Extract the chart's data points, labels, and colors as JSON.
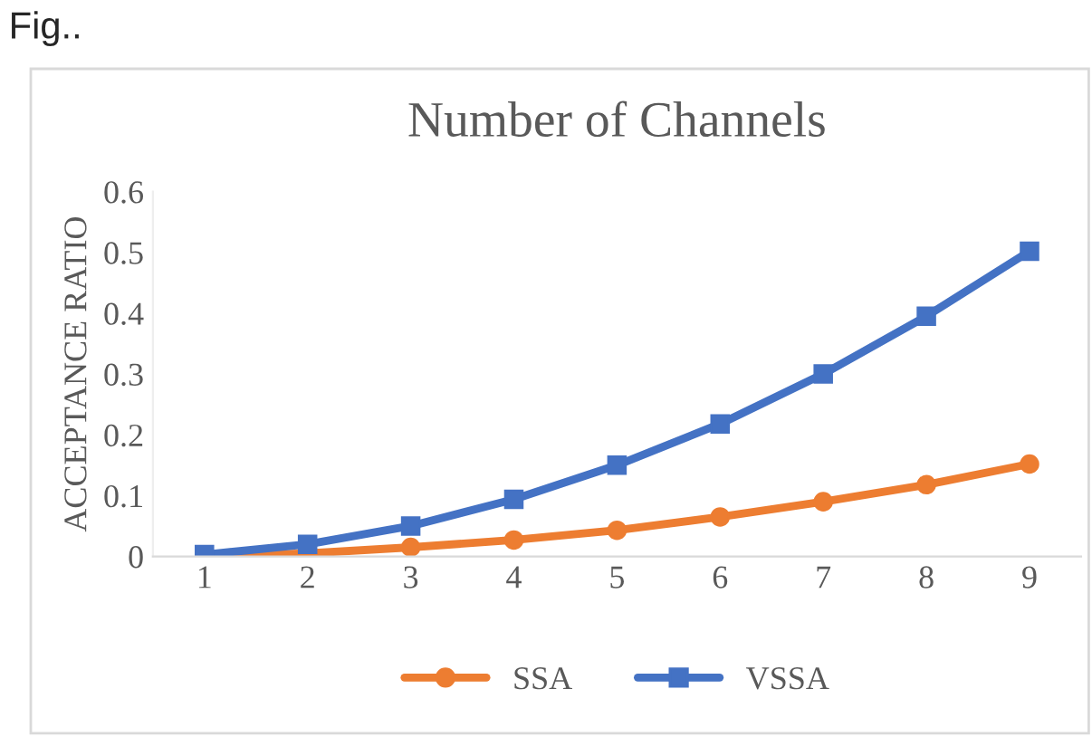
{
  "chart_data": {
    "type": "line",
    "title": "Number of Channels",
    "ylabel": "ACCEPTANCE RATIO",
    "annotations": [
      "Fig.."
    ],
    "categories": [
      "1",
      "2",
      "3",
      "4",
      "5",
      "6",
      "7",
      "8",
      "9"
    ],
    "series": [
      {
        "name": "SSA",
        "color": "#ed7d31",
        "marker": "circle",
        "values": [
          0.0,
          0.005,
          0.015,
          0.027,
          0.043,
          0.065,
          0.09,
          0.118,
          0.152
        ]
      },
      {
        "name": "VSSA",
        "color": "#4472c4",
        "marker": "square",
        "values": [
          0.003,
          0.02,
          0.05,
          0.094,
          0.15,
          0.218,
          0.3,
          0.395,
          0.502
        ]
      }
    ],
    "ylim": [
      0,
      0.6
    ],
    "yticks": [
      0,
      0.1,
      0.2,
      0.3,
      0.4,
      0.5,
      0.6
    ],
    "grid": false,
    "legend": "bottom",
    "line_style": "solid"
  }
}
